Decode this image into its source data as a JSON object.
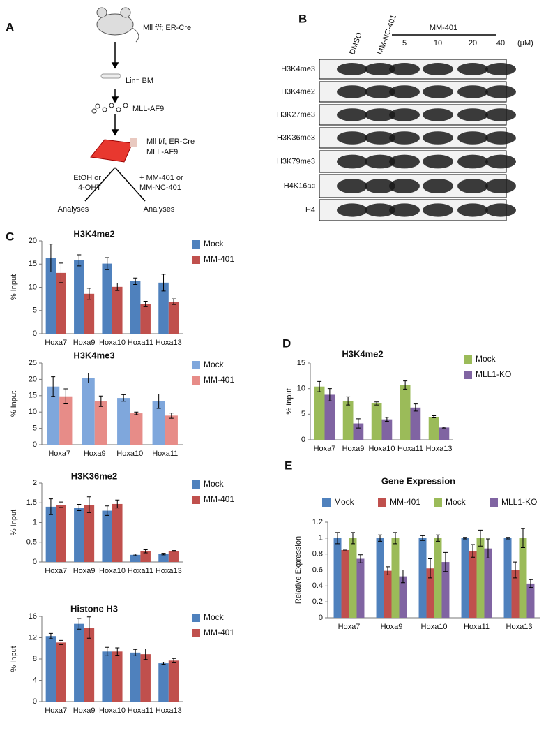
{
  "diagram": {
    "label": "A",
    "strain": "Mll f/f; ER-Cre",
    "cells": "Lin⁻ BM",
    "virus": "MLL-AF9",
    "culture": [
      "Mll f/f; ER-Cre",
      "MLL-AF9"
    ],
    "left_branch": [
      "EtOH or",
      "4-OHT"
    ],
    "right_branch": [
      "+ MM-401 or",
      "MM-NC-401"
    ],
    "outcomes": [
      "Analyses",
      "Analyses"
    ]
  },
  "blot": {
    "label": "B",
    "lanes": [
      "DMSO",
      "MM-NC-401",
      "5",
      "10",
      "20",
      "40"
    ],
    "group": "MM-401",
    "unit": "(μM)",
    "rows": [
      "H3K4me3",
      "H3K4me2",
      "H3K27me3",
      "H3K36me3",
      "H3K79me3",
      "H4K16ac",
      "H4"
    ]
  },
  "chart_data": [
    {
      "type": "bar",
      "panel_label": "C",
      "title": "H3K4me2",
      "ylabel": "% Input",
      "categories": [
        "Hoxa7",
        "Hoxa9",
        "Hoxa10",
        "Hoxa11",
        "Hoxa13"
      ],
      "series": [
        {
          "name": "Mock",
          "color": "#4f81bd",
          "values": [
            16.3,
            15.8,
            15.1,
            11.3,
            11
          ],
          "errors": [
            3,
            1.2,
            1.3,
            0.7,
            1.8
          ]
        },
        {
          "name": "MM-401",
          "color": "#c0504d",
          "values": [
            13.1,
            8.6,
            10.1,
            6.4,
            6.9
          ],
          "errors": [
            2.1,
            1.2,
            0.8,
            0.6,
            0.6
          ]
        }
      ],
      "ylim": [
        0,
        20
      ],
      "yticks": [
        0,
        5,
        10,
        15,
        20
      ],
      "legend": "right"
    },
    {
      "type": "bar",
      "title": "H3K4me3",
      "ylabel": "% Input",
      "categories": [
        "Hoxa7",
        "Hoxa9",
        "Hoxa10",
        "Hoxa11"
      ],
      "series": [
        {
          "name": "Mock",
          "color": "#7fa7dc",
          "values": [
            17.8,
            20.4,
            14.3,
            13.3
          ],
          "errors": [
            3,
            1.5,
            1,
            2.2
          ]
        },
        {
          "name": "MM-401",
          "color": "#e78c88",
          "values": [
            14.8,
            13.3,
            9.6,
            8.9
          ],
          "errors": [
            2.3,
            1.6,
            0.4,
            0.8
          ]
        }
      ],
      "ylim": [
        0,
        25
      ],
      "yticks": [
        0,
        5,
        10,
        15,
        20,
        25
      ],
      "legend": "right"
    },
    {
      "type": "bar",
      "title": "H3K36me2",
      "ylabel": "% Input",
      "categories": [
        "Hoxa7",
        "Hoxa9",
        "Hoxa10",
        "Hoxa11",
        "Hoxa13"
      ],
      "series": [
        {
          "name": "Mock",
          "color": "#4f81bd",
          "values": [
            1.4,
            1.38,
            1.3,
            0.18,
            0.2
          ],
          "errors": [
            0.2,
            0.08,
            0.12,
            0.02,
            0.02
          ]
        },
        {
          "name": "MM-401",
          "color": "#c0504d",
          "values": [
            1.45,
            1.45,
            1.47,
            0.27,
            0.28
          ],
          "errors": [
            0.07,
            0.2,
            0.1,
            0.04,
            0.01
          ]
        }
      ],
      "ylim": [
        0,
        2
      ],
      "yticks": [
        0,
        0.5,
        1,
        1.5,
        2
      ],
      "legend": "right"
    },
    {
      "type": "bar",
      "title": "Histone H3",
      "ylabel": "% Input",
      "categories": [
        "Hoxa7",
        "Hoxa9",
        "Hoxa10",
        "Hoxa11",
        "Hoxa13"
      ],
      "series": [
        {
          "name": "Mock",
          "color": "#4f81bd",
          "values": [
            12.3,
            14.6,
            9.4,
            9.2,
            7.2
          ],
          "errors": [
            0.5,
            1,
            0.8,
            0.6,
            0.2
          ]
        },
        {
          "name": "MM-401",
          "color": "#c0504d",
          "values": [
            11.1,
            13.9,
            9.4,
            8.9,
            7.7
          ],
          "errors": [
            0.4,
            2,
            0.7,
            1,
            0.4
          ]
        }
      ],
      "ylim": [
        0,
        16
      ],
      "yticks": [
        0,
        4,
        8,
        12,
        16
      ],
      "legend": "right"
    },
    {
      "type": "bar",
      "panel_label": "D",
      "title": "H3K4me2",
      "ylabel": "% Input",
      "categories": [
        "Hoxa7",
        "Hoxa9",
        "Hoxa10",
        "Hoxa11",
        "Hoxa13"
      ],
      "series": [
        {
          "name": "Mock",
          "color": "#9bbb59",
          "values": [
            10.4,
            7.6,
            7.1,
            10.7,
            4.5
          ],
          "errors": [
            1,
            0.8,
            0.3,
            0.8,
            0.2
          ]
        },
        {
          "name": "MLL1-KO",
          "color": "#8064a2",
          "values": [
            8.8,
            3.2,
            4,
            6.3,
            2.4
          ],
          "errors": [
            1.2,
            0.9,
            0.4,
            0.7,
            0.1
          ]
        }
      ],
      "ylim": [
        0,
        15
      ],
      "yticks": [
        0,
        5,
        10,
        15
      ],
      "legend": "right"
    },
    {
      "type": "bar",
      "panel_label": "E",
      "title": "Gene Expression",
      "ylabel": "Relative Expression",
      "categories": [
        "Hoxa7",
        "Hoxa9",
        "Hoxa10",
        "Hoxa11",
        "Hoxa13"
      ],
      "series": [
        {
          "name": "Mock",
          "color": "#4f81bd",
          "values": [
            1,
            1,
            1,
            1,
            1
          ],
          "errors": [
            0.07,
            0.04,
            0.03,
            0.01,
            0.01
          ]
        },
        {
          "name": "MM-401",
          "color": "#c0504d",
          "values": [
            0.85,
            0.59,
            0.62,
            0.84,
            0.6
          ],
          "errors": [
            0,
            0.05,
            0.12,
            0.08,
            0.1
          ]
        },
        {
          "name": "Mock",
          "color": "#9bbb59",
          "values": [
            1,
            1,
            1,
            1,
            1
          ],
          "errors": [
            0.07,
            0.07,
            0.04,
            0.1,
            0.12
          ]
        },
        {
          "name": "MLL1-KO",
          "color": "#8064a2",
          "values": [
            0.74,
            0.52,
            0.7,
            0.87,
            0.43
          ],
          "errors": [
            0.05,
            0.08,
            0.12,
            0.12,
            0.05
          ]
        }
      ],
      "ylim": [
        0,
        1.2
      ],
      "yticks": [
        0,
        0.2,
        0.4,
        0.6,
        0.8,
        1,
        1.2
      ],
      "legend": "top"
    }
  ]
}
